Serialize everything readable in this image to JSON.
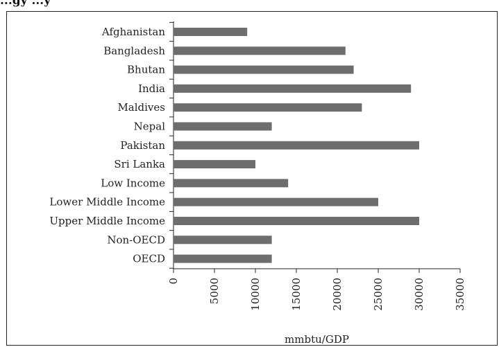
{
  "title": "...gy ...y",
  "chart_data": {
    "type": "bar",
    "orientation": "horizontal",
    "categories": [
      "Afghanistan",
      "Bangladesh",
      "Bhutan",
      "India",
      "Maldives",
      "Nepal",
      "Pakistan",
      "Sri Lanka",
      "Low Income",
      "Lower Middle Income",
      "Upper Middle Income",
      "Non-OECD",
      "OECD"
    ],
    "values": [
      9000,
      21000,
      22000,
      29000,
      23000,
      12000,
      30000,
      10000,
      14000,
      25000,
      30000,
      12000,
      12000
    ],
    "xlabel": "mmbtu/GDP",
    "ylabel": "",
    "xlim": [
      0,
      35000
    ],
    "xticks": [
      0,
      5000,
      10000,
      15000,
      20000,
      25000,
      30000,
      35000
    ],
    "grid": false,
    "colors": {
      "bar": "#6d6d6d",
      "axis": "#222222"
    }
  }
}
